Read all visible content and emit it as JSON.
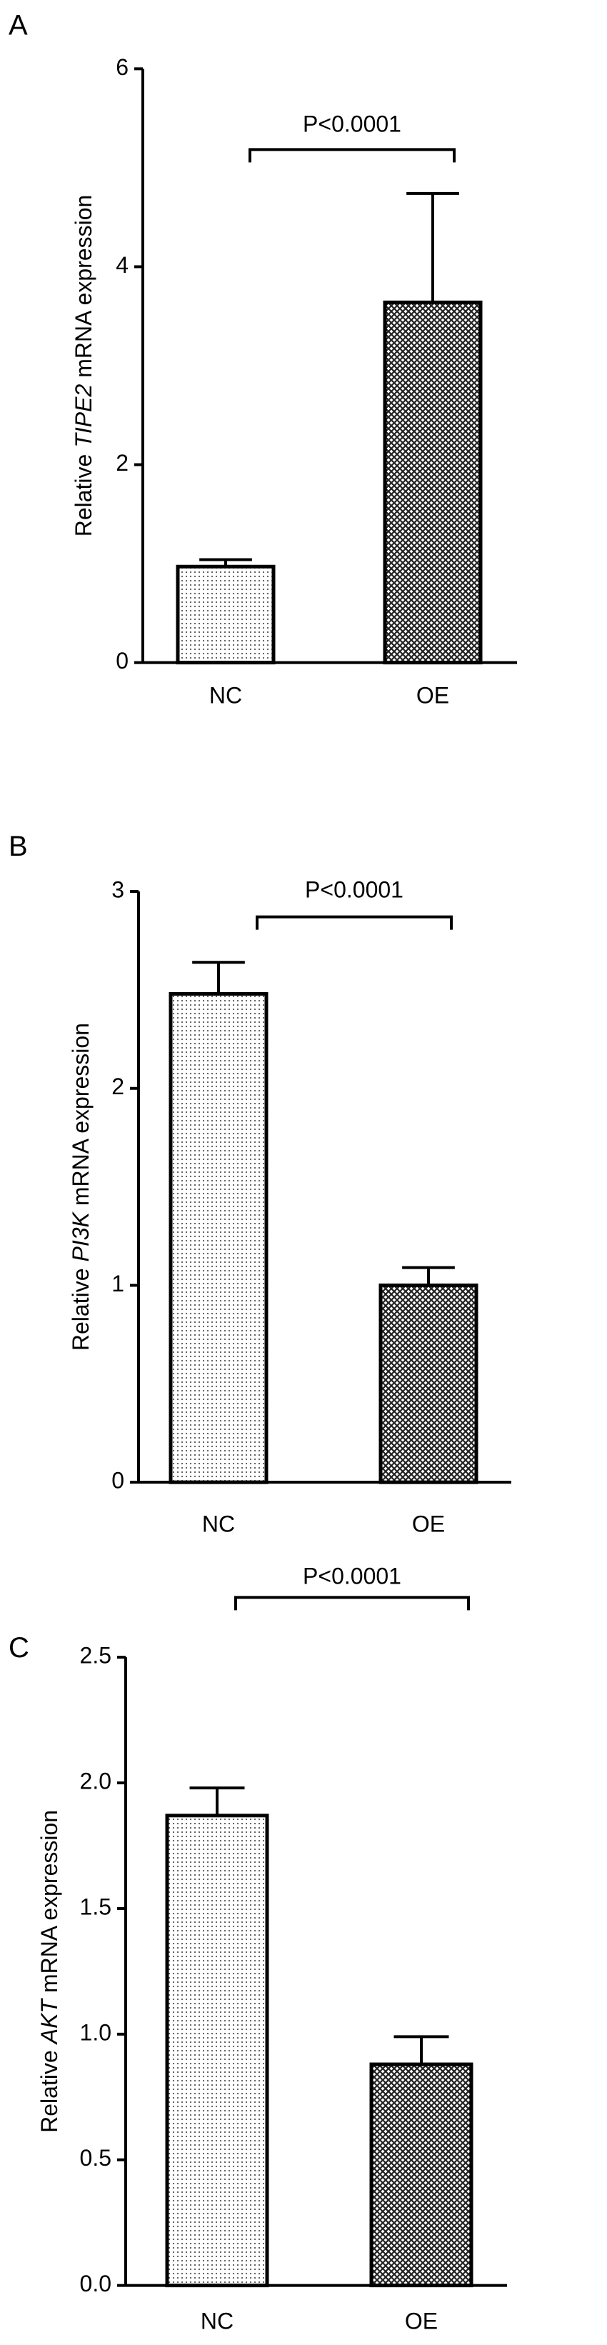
{
  "chart_data": [
    {
      "type": "bar",
      "panel_label": "A",
      "ylabel_prefix": "Relative",
      "ylabel_gene": "TIPE2",
      "ylabel_suffix": "mRNA expression",
      "categories": [
        "NC",
        "OE"
      ],
      "values": [
        0.97,
        3.64
      ],
      "errors": [
        0.07,
        1.1
      ],
      "ylim": [
        0,
        6
      ],
      "yticks": [
        0,
        2,
        4,
        6
      ],
      "annotation": "P<0.0001"
    },
    {
      "type": "bar",
      "panel_label": "B",
      "ylabel_prefix": "Relative",
      "ylabel_gene": "PI3K",
      "ylabel_suffix": "mRNA expression",
      "categories": [
        "NC",
        "OE"
      ],
      "values": [
        2.48,
        1.0
      ],
      "errors": [
        0.16,
        0.09
      ],
      "ylim": [
        0,
        3
      ],
      "yticks": [
        0,
        1,
        2,
        3
      ],
      "annotation": "P<0.0001"
    },
    {
      "type": "bar",
      "panel_label": "C",
      "ylabel_prefix": "Relative",
      "ylabel_gene": "AKT",
      "ylabel_suffix": "mRNA expression",
      "categories": [
        "NC",
        "OE"
      ],
      "values": [
        1.87,
        0.88
      ],
      "errors": [
        0.11,
        0.11
      ],
      "ylim": [
        0,
        2.5
      ],
      "yticks": [
        {
          "value": 0,
          "label": "0.0"
        },
        0.5,
        {
          "value": 1,
          "label": "1.0"
        },
        1.5,
        {
          "value": 2,
          "label": "2.0"
        },
        2.5
      ],
      "annotation": "P<0.0001"
    }
  ]
}
